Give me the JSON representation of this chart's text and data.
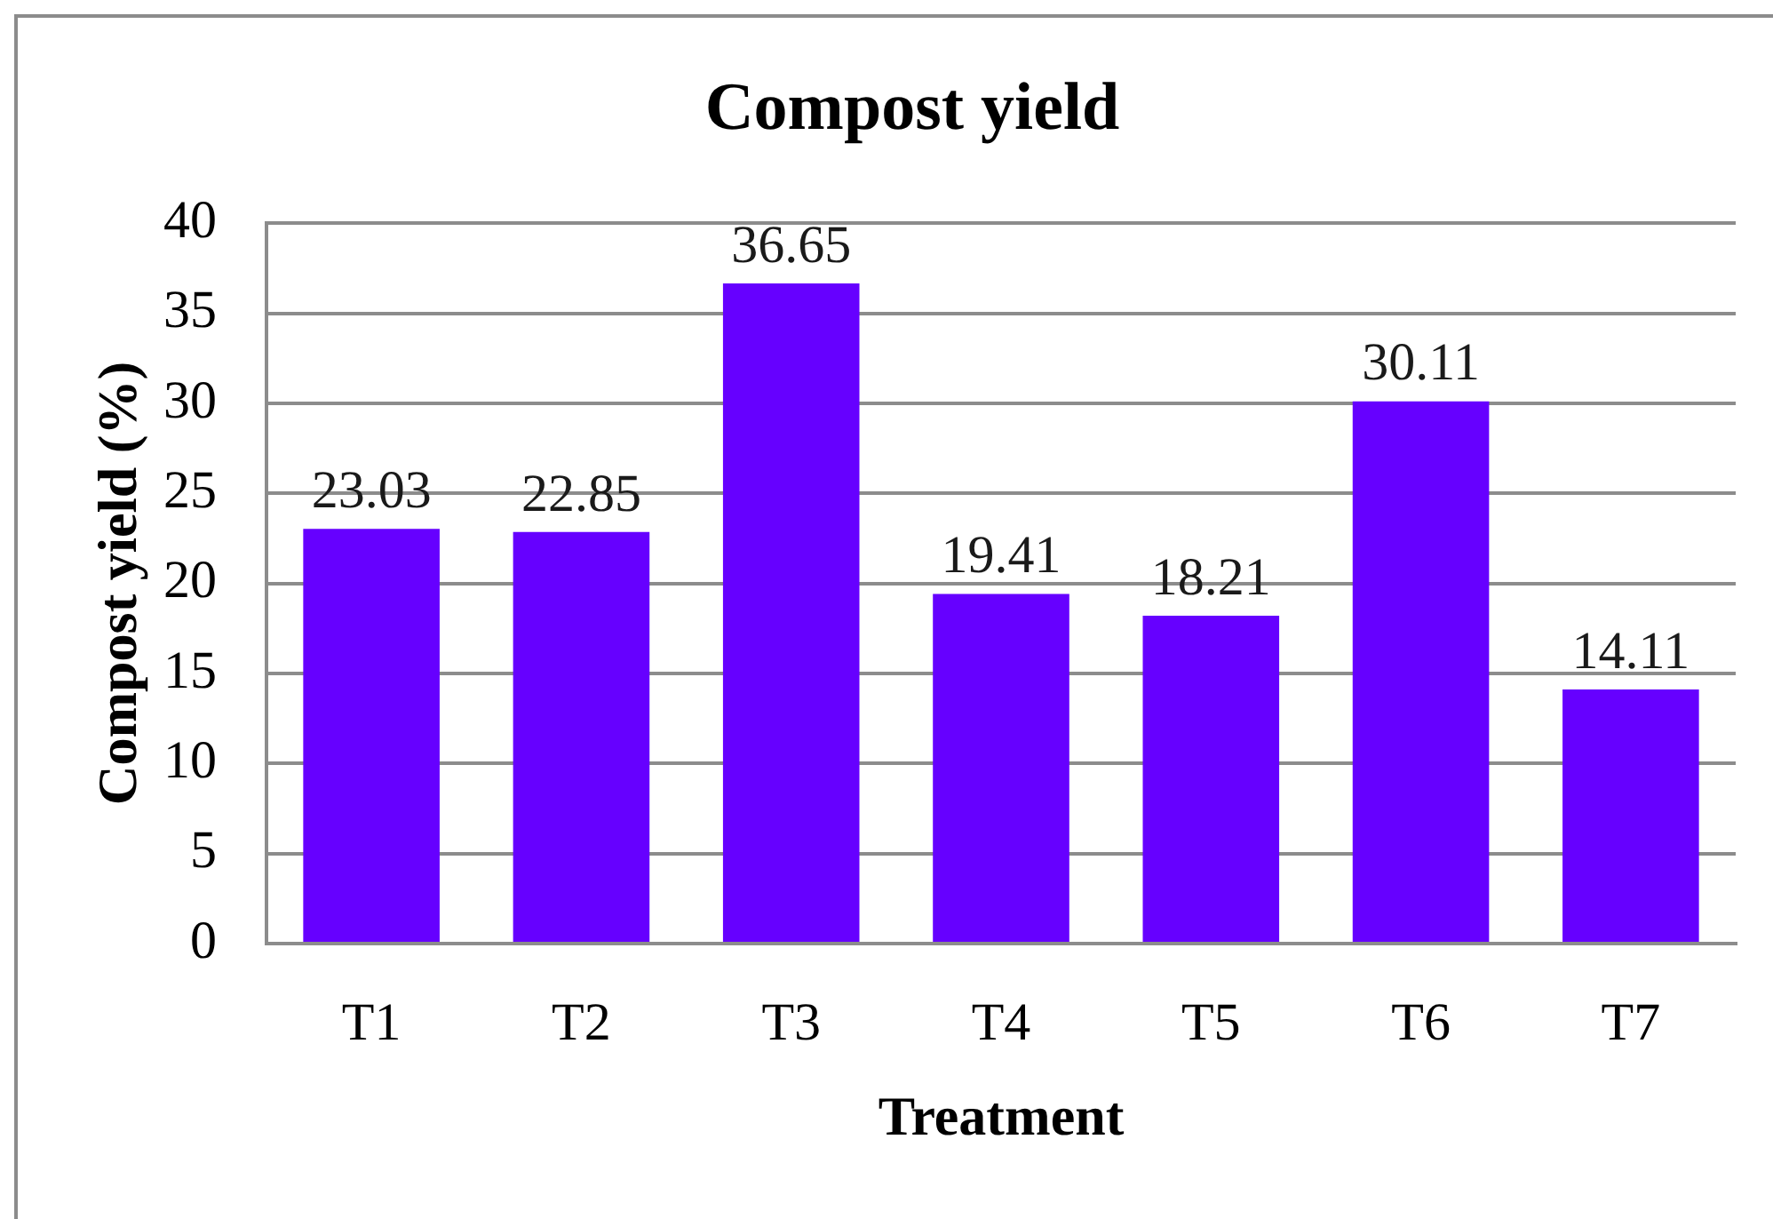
{
  "chart_data": {
    "type": "bar",
    "title": "Compost yield",
    "xlabel": "Treatment",
    "ylabel": "Compost yield (%)",
    "categories": [
      "T1",
      "T2",
      "T3",
      "T4",
      "T5",
      "T6",
      "T7"
    ],
    "values": [
      23.03,
      22.85,
      36.65,
      19.41,
      18.21,
      30.11,
      14.11
    ],
    "color": "#6600ff",
    "ylim": [
      0,
      40
    ],
    "yticks": [
      0,
      5,
      10,
      15,
      20,
      25,
      30,
      35,
      40
    ],
    "grid": "y",
    "data_labels": true
  }
}
